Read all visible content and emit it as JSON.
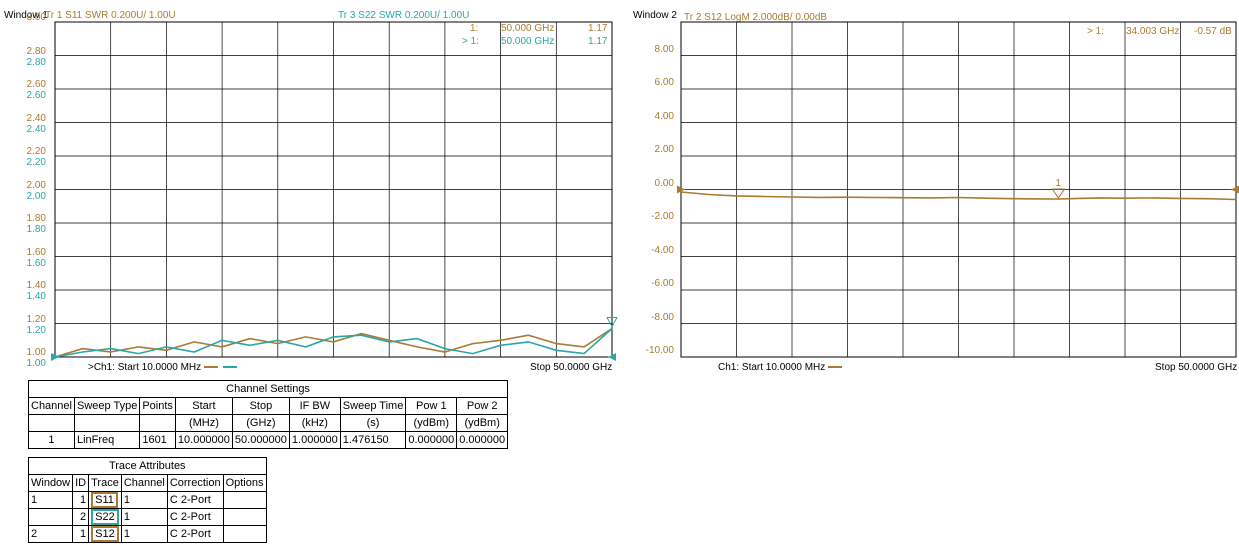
{
  "window1": {
    "window_label": "Window 1",
    "tr1_header": "Tr  1  S11 SWR 0.200U/  1.00U",
    "tr3_header": "Tr  3  S22 SWR 0.200U/  1.00U",
    "marker_rows": [
      {
        "id": "1:",
        "freq": "50.000 GHz",
        "value": "1.17"
      },
      {
        "id": "> 1:",
        "freq": "50.000 GHz",
        "value": "1.17"
      }
    ],
    "ytick_labels_s11": [
      "3.00",
      "2.80",
      "2.60",
      "2.40",
      "2.20",
      "2.00",
      "1.80",
      "1.60",
      "1.40",
      "1.20",
      "1.00"
    ],
    "ytick_labels_s22": [
      "2.80",
      "2.60",
      "2.40",
      "2.20",
      "2.00",
      "1.80",
      "1.60",
      "1.40",
      "1.20",
      "1.00"
    ],
    "footer_start": ">Ch1:  Start  10.0000 MHz",
    "footer_stop": "Stop  50.0000 GHz"
  },
  "window2": {
    "window_label": "Window 2",
    "tr2_header": "Tr  2  S12 LogM 2.000dB/  0.00dB",
    "marker_row": {
      "id": "> 1:",
      "freq": "34.003 GHz",
      "value": "-0.57 dB"
    },
    "marker_flag": "1",
    "ytick_labels": [
      "8.00",
      "6.00",
      "4.00",
      "2.00",
      "0.00",
      "-2.00",
      "-4.00",
      "-6.00",
      "-8.00",
      "-10.00"
    ],
    "footer_start": "Ch1:  Start  10.0000 MHz",
    "footer_stop": "Stop  50.0000 GHz"
  },
  "chart_data": [
    {
      "type": "line",
      "x_unit": "GHz",
      "xlim": [
        0.01,
        50
      ],
      "ylim": [
        1.0,
        3.0
      ],
      "grid": true,
      "colors": {
        "S11": "#a97a2f",
        "S22": "#2aa6a6"
      },
      "series": [
        {
          "name": "S11",
          "x": [
            0.01,
            2.5,
            5,
            7.5,
            10,
            12.5,
            15,
            17.5,
            20,
            22.5,
            25,
            27.5,
            30,
            32.5,
            35,
            37.5,
            40,
            42.5,
            45,
            47.5,
            50
          ],
          "y": [
            1.0,
            1.05,
            1.03,
            1.06,
            1.04,
            1.09,
            1.06,
            1.11,
            1.08,
            1.12,
            1.09,
            1.14,
            1.1,
            1.06,
            1.03,
            1.08,
            1.1,
            1.13,
            1.08,
            1.06,
            1.17
          ]
        },
        {
          "name": "S22",
          "x": [
            0.01,
            2.5,
            5,
            7.5,
            10,
            12.5,
            15,
            17.5,
            20,
            22.5,
            25,
            27.5,
            30,
            32.5,
            35,
            37.5,
            40,
            42.5,
            45,
            47.5,
            50
          ],
          "y": [
            1.0,
            1.03,
            1.05,
            1.02,
            1.06,
            1.03,
            1.1,
            1.07,
            1.1,
            1.06,
            1.12,
            1.13,
            1.09,
            1.11,
            1.05,
            1.02,
            1.07,
            1.09,
            1.04,
            1.02,
            1.17
          ]
        }
      ]
    },
    {
      "type": "line",
      "x_unit": "GHz",
      "xlim": [
        0.01,
        50
      ],
      "ylim": [
        -10,
        10
      ],
      "grid": true,
      "colors": {
        "S12": "#a97a2f"
      },
      "series": [
        {
          "name": "S12",
          "x": [
            0.01,
            2.5,
            5,
            7.5,
            10,
            12.5,
            15,
            17.5,
            20,
            22.5,
            25,
            27.5,
            30,
            32.5,
            34.003,
            35,
            37.5,
            40,
            42.5,
            45,
            47.5,
            50
          ],
          "y": [
            -0.15,
            -0.3,
            -0.38,
            -0.42,
            -0.45,
            -0.47,
            -0.46,
            -0.48,
            -0.49,
            -0.5,
            -0.48,
            -0.52,
            -0.55,
            -0.56,
            -0.57,
            -0.55,
            -0.5,
            -0.52,
            -0.5,
            -0.53,
            -0.55,
            -0.6
          ]
        }
      ]
    }
  ],
  "channel_settings": {
    "title": "Channel Settings",
    "headers1": [
      "Channel",
      "Sweep Type",
      "Points",
      "Start",
      "Stop",
      "IF BW",
      "Sweep Time",
      "Pow 1",
      "Pow 2"
    ],
    "headers2": [
      "",
      "",
      "",
      "(MHz)",
      "(GHz)",
      "(kHz)",
      "(s)",
      "(ydBm)",
      "(ydBm)"
    ],
    "row": [
      "1",
      "LinFreq",
      "1601",
      "10.000000",
      "50.000000",
      "1.000000",
      "1.476150",
      "0.000000",
      "0.000000"
    ]
  },
  "trace_attributes": {
    "title": "Trace Attributes",
    "headers": [
      "Window",
      "ID",
      "Trace",
      "Channel",
      "Correction",
      "Options"
    ],
    "rows": [
      [
        "1",
        "1",
        "S11",
        "1",
        "C 2-Port",
        ""
      ],
      [
        "",
        "2",
        "S22",
        "1",
        "C 2-Port",
        ""
      ],
      [
        "2",
        "1",
        "S12",
        "1",
        "C 2-Port",
        ""
      ]
    ]
  }
}
